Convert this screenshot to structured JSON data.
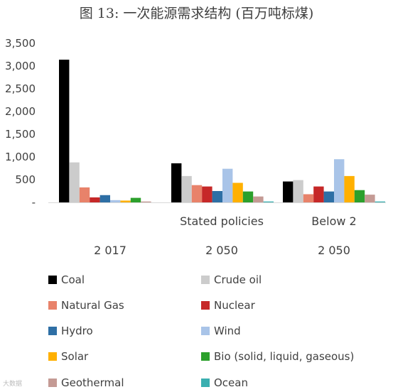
{
  "chart_data": {
    "type": "bar",
    "title": "图 13: 一次能源需求结构 (百万吨标煤)",
    "yticks": [
      "-",
      "500",
      "1,000",
      "1,500",
      "2,000",
      "2,500",
      "3,000",
      "3,500"
    ],
    "ylim": [
      0,
      3500
    ],
    "grid": false,
    "legend_position": "bottom",
    "scenario_labels": [
      "",
      "Stated policies",
      "Below 2"
    ],
    "year_labels": [
      "2 017",
      "2 050",
      "2 050"
    ],
    "series": [
      {
        "name": "Coal",
        "color": "#000000",
        "values": [
          3140,
          860,
          460
        ]
      },
      {
        "name": "Crude oil",
        "color": "#cccccc",
        "values": [
          880,
          580,
          490
        ]
      },
      {
        "name": "Natural Gas",
        "color": "#e8826a",
        "values": [
          330,
          380,
          180
        ]
      },
      {
        "name": "Nuclear",
        "color": "#c62828",
        "values": [
          110,
          350,
          350
        ]
      },
      {
        "name": "Hydro",
        "color": "#2e6fa5",
        "values": [
          160,
          250,
          240
        ]
      },
      {
        "name": "Wind",
        "color": "#a9c4e8",
        "values": [
          50,
          740,
          950
        ]
      },
      {
        "name": "Solar",
        "color": "#ffb000",
        "values": [
          40,
          430,
          580
        ]
      },
      {
        "name": "Bio (solid, liquid, gaseous)",
        "color": "#2ca02c",
        "values": [
          100,
          240,
          270
        ]
      },
      {
        "name": "Geothermal",
        "color": "#c49a94",
        "values": [
          20,
          130,
          170
        ]
      },
      {
        "name": "Ocean",
        "color": "#3aafb0",
        "values": [
          0,
          20,
          20
        ]
      }
    ]
  },
  "watermark": "大数据"
}
